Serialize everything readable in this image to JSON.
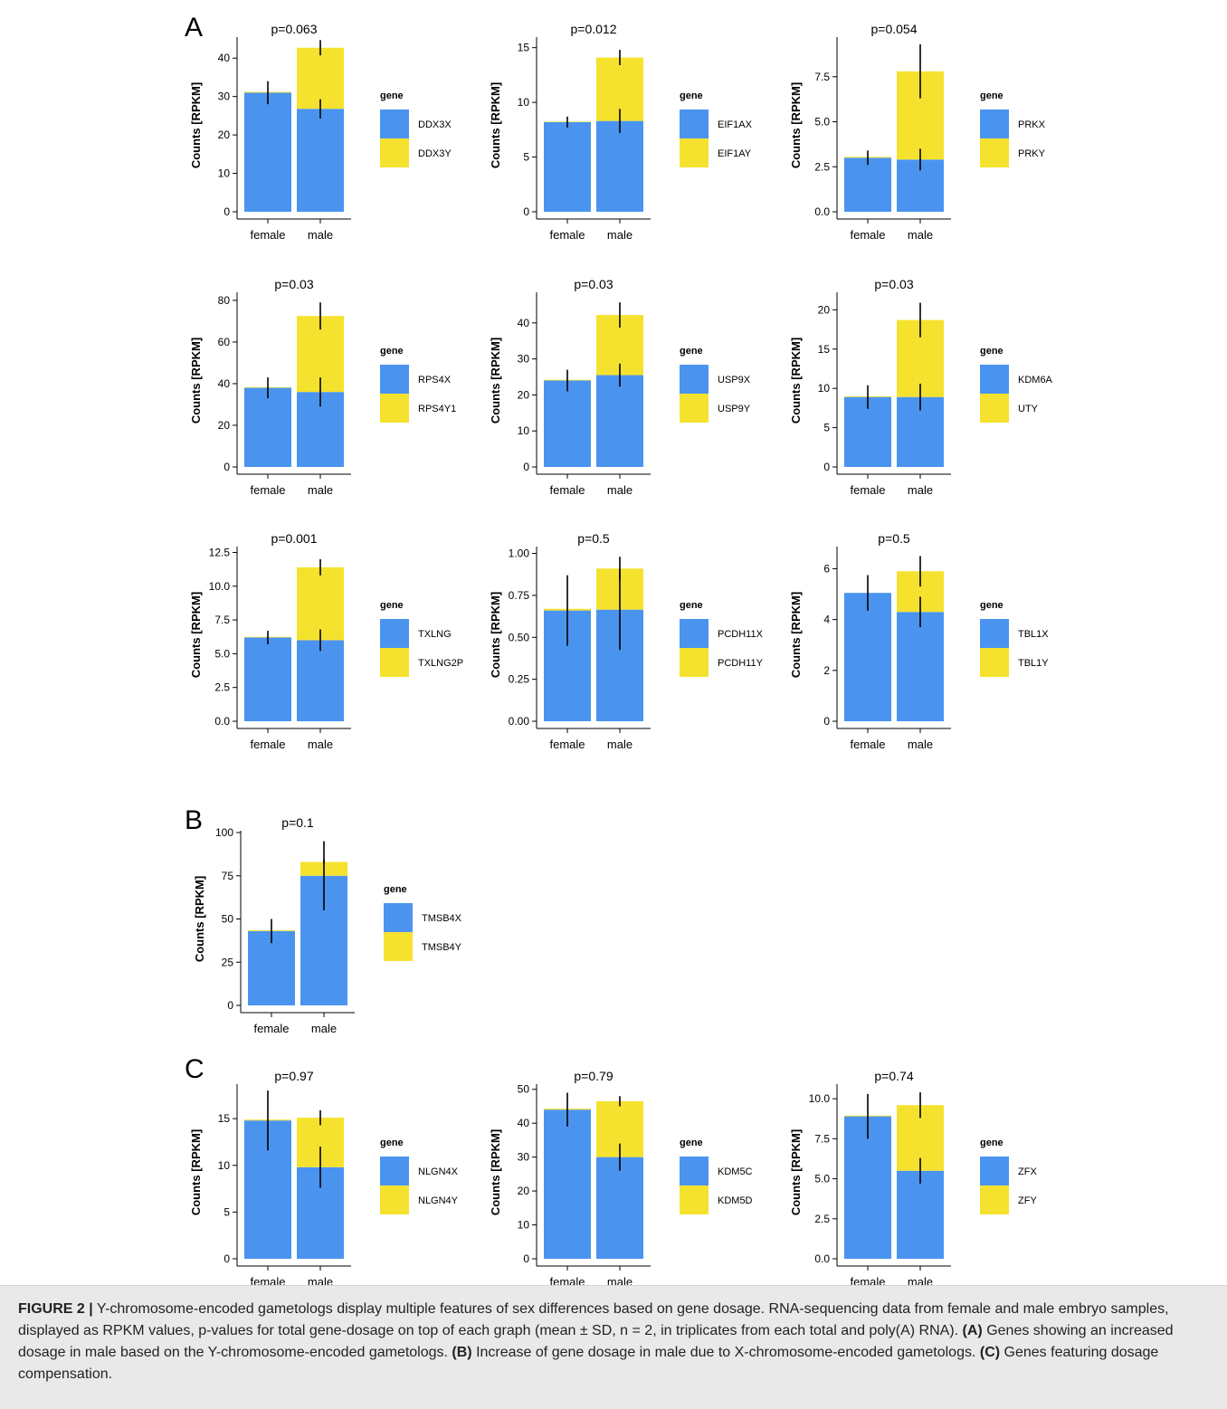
{
  "panel_labels": {
    "a": "A",
    "b": "B",
    "c": "C"
  },
  "y_axis_label": "Counts [RPKM]",
  "legend_title": "gene",
  "categories": [
    "female",
    "male"
  ],
  "colors": {
    "x_gene": "#4a94f0",
    "y_gene": "#f5e22e"
  },
  "chart_data": [
    {
      "type": "bar",
      "stacked": true,
      "panel": "A",
      "title": "p=0.063",
      "ylabel": "Counts [RPKM]",
      "categories": [
        "female",
        "male"
      ],
      "ylim": [
        0,
        45
      ],
      "yticks": [
        0,
        10,
        20,
        30,
        40
      ],
      "tick_labels": [
        "0",
        "10",
        "20",
        "30",
        "40"
      ],
      "series": [
        {
          "name": "DDX3X",
          "values": [
            31.0,
            26.8
          ],
          "err": [
            3.0,
            2.5
          ]
        },
        {
          "name": "DDX3Y",
          "values": [
            0.2,
            15.9
          ],
          "err": [
            0,
            2.0
          ]
        }
      ]
    },
    {
      "type": "bar",
      "stacked": true,
      "panel": "A",
      "title": "p=0.012",
      "ylabel": "Counts [RPKM]",
      "categories": [
        "female",
        "male"
      ],
      "ylim": [
        0,
        15.8
      ],
      "yticks": [
        0,
        5,
        10,
        15
      ],
      "tick_labels": [
        "0",
        "5",
        "10",
        "15"
      ],
      "series": [
        {
          "name": "EIF1AX",
          "values": [
            8.2,
            8.3
          ],
          "err": [
            0.5,
            1.1
          ]
        },
        {
          "name": "EIF1AY",
          "values": [
            0.05,
            5.8
          ],
          "err": [
            0,
            0.7
          ]
        }
      ]
    },
    {
      "type": "bar",
      "stacked": true,
      "panel": "A",
      "title": "p=0.054",
      "ylabel": "Counts [RPKM]",
      "categories": [
        "female",
        "male"
      ],
      "ylim": [
        0,
        9.6
      ],
      "yticks": [
        0,
        2.5,
        5,
        7.5
      ],
      "tick_labels": [
        "0.0",
        "2.5",
        "5.0",
        "7.5"
      ],
      "series": [
        {
          "name": "PRKX",
          "values": [
            3.0,
            2.9
          ],
          "err": [
            0.4,
            0.6
          ]
        },
        {
          "name": "PRKY",
          "values": [
            0.05,
            4.9
          ],
          "err": [
            0,
            1.5
          ]
        }
      ]
    },
    {
      "type": "bar",
      "stacked": true,
      "panel": "A",
      "title": "p=0.03",
      "ylabel": "Counts [RPKM]",
      "categories": [
        "female",
        "male"
      ],
      "ylim": [
        0,
        83
      ],
      "yticks": [
        0,
        20,
        40,
        60,
        80
      ],
      "tick_labels": [
        "0",
        "20",
        "40",
        "60",
        "80"
      ],
      "series": [
        {
          "name": "RPS4X",
          "values": [
            38,
            36
          ],
          "err": [
            5,
            7
          ]
        },
        {
          "name": "RPS4Y1",
          "values": [
            0.3,
            36.5
          ],
          "err": [
            0,
            6.5
          ]
        }
      ]
    },
    {
      "type": "bar",
      "stacked": true,
      "panel": "A",
      "title": "p=0.03",
      "ylabel": "Counts [RPKM]",
      "categories": [
        "female",
        "male"
      ],
      "ylim": [
        0,
        48
      ],
      "yticks": [
        0,
        10,
        20,
        30,
        40
      ],
      "tick_labels": [
        "0",
        "10",
        "20",
        "30",
        "40"
      ],
      "series": [
        {
          "name": "USP9X",
          "values": [
            24,
            25.5
          ],
          "err": [
            3,
            3.2
          ]
        },
        {
          "name": "USP9Y",
          "values": [
            0.2,
            16.7
          ],
          "err": [
            0,
            3.5
          ]
        }
      ]
    },
    {
      "type": "bar",
      "stacked": true,
      "panel": "A",
      "title": "p=0.03",
      "ylabel": "Counts [RPKM]",
      "categories": [
        "female",
        "male"
      ],
      "ylim": [
        0,
        22
      ],
      "yticks": [
        0,
        5,
        10,
        15,
        20
      ],
      "tick_labels": [
        "0",
        "5",
        "10",
        "15",
        "20"
      ],
      "series": [
        {
          "name": "KDM6A",
          "values": [
            8.9,
            8.9
          ],
          "err": [
            1.5,
            1.7
          ]
        },
        {
          "name": "UTY",
          "values": [
            0.1,
            9.8
          ],
          "err": [
            0,
            2.2
          ]
        }
      ]
    },
    {
      "type": "bar",
      "stacked": true,
      "panel": "A",
      "title": "p=0.001",
      "ylabel": "Counts [RPKM]",
      "categories": [
        "female",
        "male"
      ],
      "ylim": [
        0,
        12.8
      ],
      "yticks": [
        0,
        2.5,
        5,
        7.5,
        10,
        12.5
      ],
      "tick_labels": [
        "0.0",
        "2.5",
        "5.0",
        "7.5",
        "10.0",
        "12.5"
      ],
      "series": [
        {
          "name": "TXLNG",
          "values": [
            6.2,
            6.0
          ],
          "err": [
            0.5,
            0.8
          ]
        },
        {
          "name": "TXLNG2P",
          "values": [
            0.05,
            5.4
          ],
          "err": [
            0,
            0.6
          ]
        }
      ]
    },
    {
      "type": "bar",
      "stacked": true,
      "panel": "A",
      "title": "p=0.5",
      "ylabel": "Counts [RPKM]",
      "categories": [
        "female",
        "male"
      ],
      "ylim": [
        0,
        1.03
      ],
      "yticks": [
        0,
        0.25,
        0.5,
        0.75,
        1
      ],
      "tick_labels": [
        "0.00",
        "0.25",
        "0.50",
        "0.75",
        "1.00"
      ],
      "series": [
        {
          "name": "PCDH11X",
          "values": [
            0.66,
            0.665
          ],
          "err": [
            0.21,
            0.24
          ]
        },
        {
          "name": "PCDH11Y",
          "values": [
            0.01,
            0.245
          ],
          "err": [
            0,
            0.07
          ]
        }
      ]
    },
    {
      "type": "bar",
      "stacked": true,
      "panel": "A",
      "title": "p=0.5",
      "ylabel": "Counts [RPKM]",
      "categories": [
        "female",
        "male"
      ],
      "ylim": [
        0,
        6.8
      ],
      "yticks": [
        0,
        2,
        4,
        6
      ],
      "tick_labels": [
        "0",
        "2",
        "4",
        "6"
      ],
      "series": [
        {
          "name": "TBL1X",
          "values": [
            5.05,
            4.3
          ],
          "err": [
            0.7,
            0.6
          ]
        },
        {
          "name": "TBL1Y",
          "values": [
            0,
            1.6
          ],
          "err": [
            0,
            0.6
          ]
        }
      ]
    },
    {
      "type": "bar",
      "stacked": true,
      "panel": "B",
      "title": "p=0.1",
      "ylabel": "Counts [RPKM]",
      "categories": [
        "female",
        "male"
      ],
      "ylim": [
        0,
        100
      ],
      "yticks": [
        0,
        25,
        50,
        75,
        100
      ],
      "tick_labels": [
        "0",
        "25",
        "50",
        "75",
        "100"
      ],
      "series": [
        {
          "name": "TMSB4X",
          "values": [
            43,
            75
          ],
          "err": [
            7,
            20
          ]
        },
        {
          "name": "TMSB4Y",
          "values": [
            0.5,
            8
          ],
          "err": [
            0,
            1.5
          ]
        }
      ]
    },
    {
      "type": "bar",
      "stacked": true,
      "panel": "C",
      "title": "p=0.97",
      "ylabel": "Counts [RPKM]",
      "categories": [
        "female",
        "male"
      ],
      "ylim": [
        0,
        18.5
      ],
      "yticks": [
        0,
        5,
        10,
        15
      ],
      "tick_labels": [
        "0",
        "5",
        "10",
        "15"
      ],
      "series": [
        {
          "name": "NLGN4X",
          "values": [
            14.8,
            9.8
          ],
          "err": [
            3.2,
            2.2
          ]
        },
        {
          "name": "NLGN4Y",
          "values": [
            0.1,
            5.3
          ],
          "err": [
            0,
            0.8
          ]
        }
      ]
    },
    {
      "type": "bar",
      "stacked": true,
      "panel": "C",
      "title": "p=0.79",
      "ylabel": "Counts [RPKM]",
      "categories": [
        "female",
        "male"
      ],
      "ylim": [
        0,
        51
      ],
      "yticks": [
        0,
        10,
        20,
        30,
        40,
        50
      ],
      "tick_labels": [
        "0",
        "10",
        "20",
        "30",
        "40",
        "50"
      ],
      "series": [
        {
          "name": "KDM5C",
          "values": [
            44,
            30
          ],
          "err": [
            5,
            4
          ]
        },
        {
          "name": "KDM5D",
          "values": [
            0.3,
            16.5
          ],
          "err": [
            0,
            1.5
          ]
        }
      ]
    },
    {
      "type": "bar",
      "stacked": true,
      "panel": "C",
      "title": "p=0.74",
      "ylabel": "Counts [RPKM]",
      "categories": [
        "female",
        "male"
      ],
      "ylim": [
        0,
        10.8
      ],
      "yticks": [
        0,
        2.5,
        5,
        7.5,
        10
      ],
      "tick_labels": [
        "0.0",
        "2.5",
        "5.0",
        "7.5",
        "10.0"
      ],
      "series": [
        {
          "name": "ZFX",
          "values": [
            8.9,
            5.5
          ],
          "err": [
            1.4,
            0.8
          ]
        },
        {
          "name": "ZFY",
          "values": [
            0.05,
            4.1
          ],
          "err": [
            0,
            0.8
          ]
        }
      ]
    }
  ],
  "caption": {
    "lead": "FIGURE 2 |",
    "t1": " Y-chromosome-encoded gametologs display multiple features of sex differences based on gene dosage. RNA-sequencing data from female and male embryo samples, displayed as RPKM values, p-values for total gene-dosage on top of each graph (mean ± SD, n = 2, in triplicates from each total and poly(A) RNA). ",
    "a_label": "(A)",
    "a_text": " Genes showing an increased dosage in male based on the Y-chromosome-encoded gametologs. ",
    "b_label": "(B)",
    "b_text": " Increase of gene dosage in male due to X-chromosome-encoded gametologs. ",
    "c_label": "(C)",
    "c_text": " Genes featuring dosage compensation."
  }
}
